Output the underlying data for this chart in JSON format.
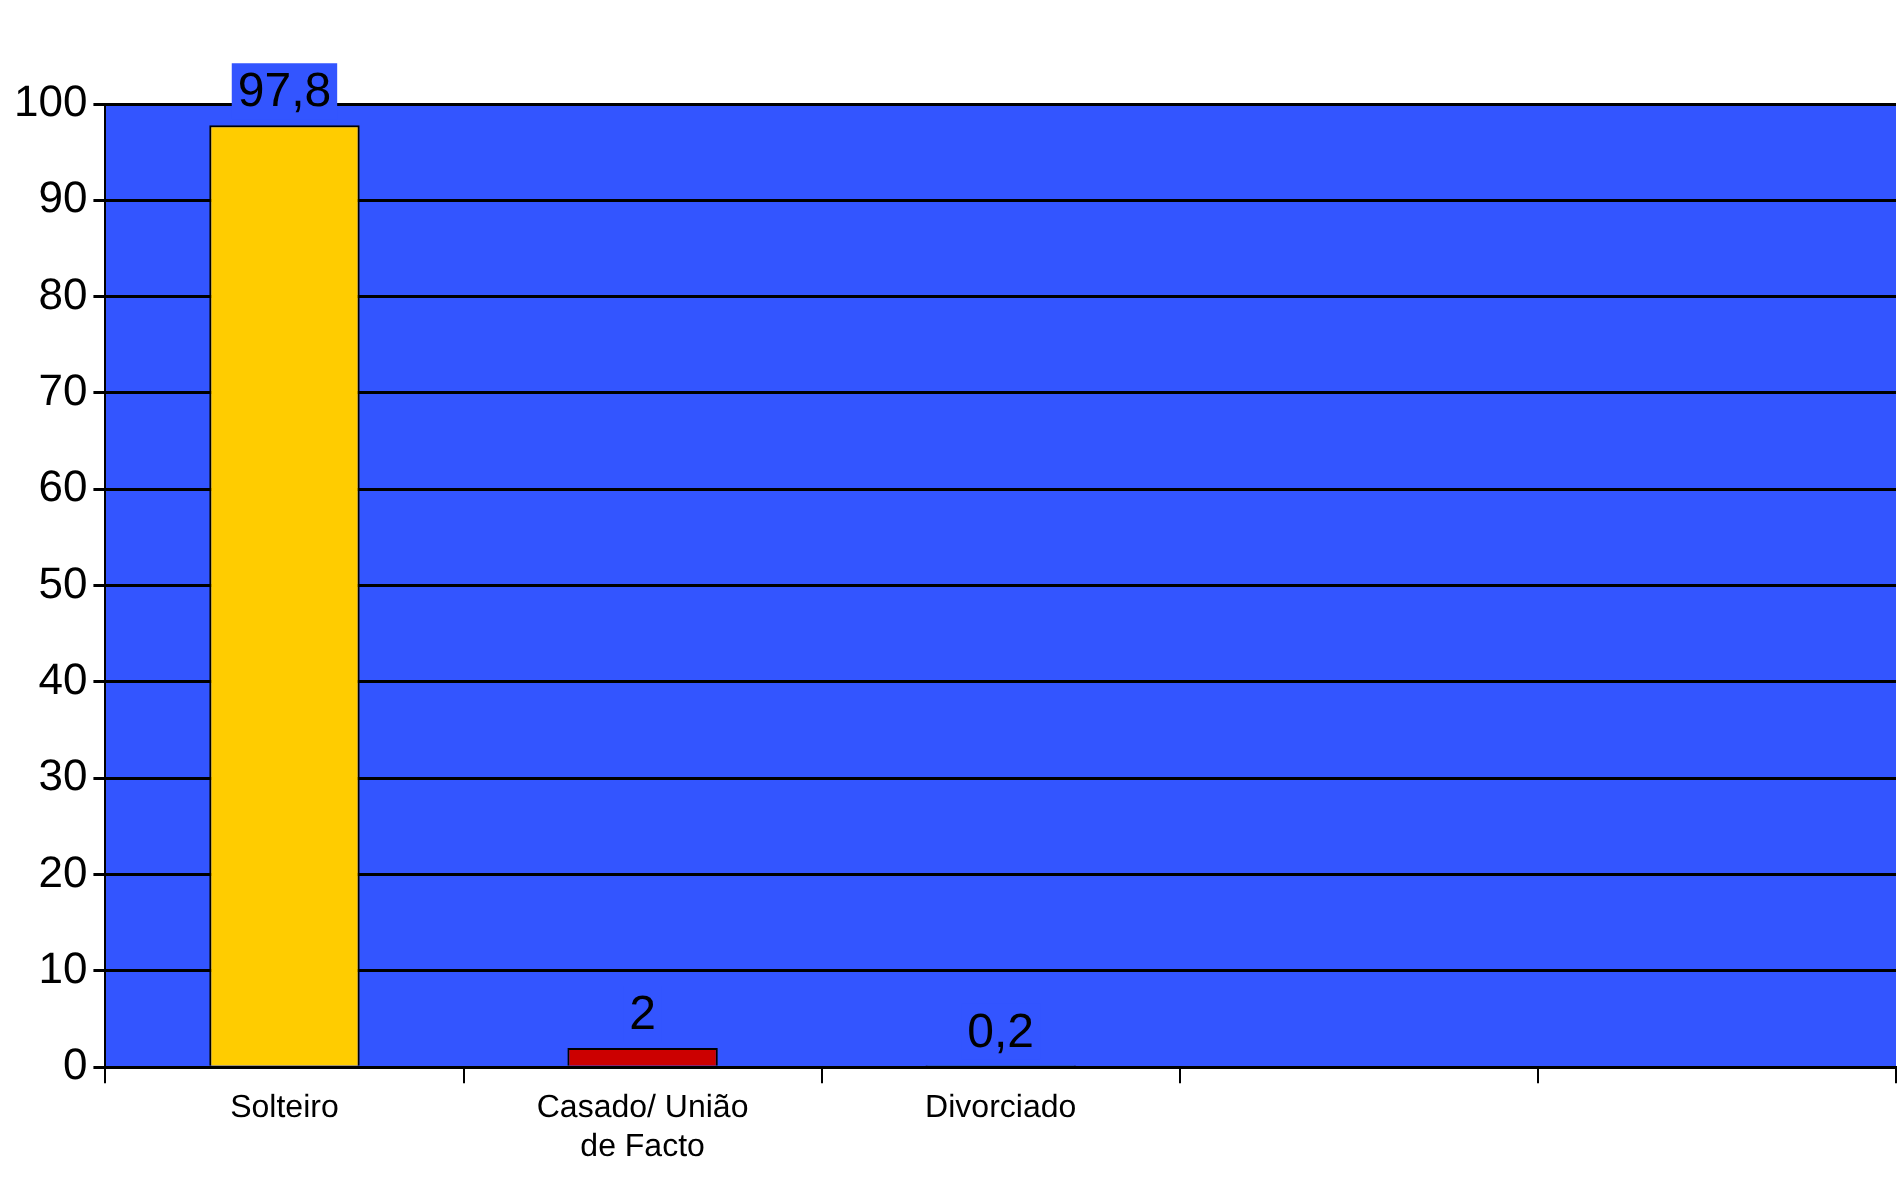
{
  "chart_data": {
    "type": "bar",
    "categories": [
      "Solteiro",
      "Casado/ União de Facto",
      "Divorciado",
      null,
      null
    ],
    "values": [
      97.8,
      2,
      0.2,
      null,
      null
    ],
    "colors": [
      "#ffcc00",
      "#cc0000",
      "#33aa99",
      "#000000",
      "#000000"
    ],
    "value_labels": [
      "97,8",
      "2",
      "0,2",
      null,
      null
    ],
    "ylim": [
      0,
      100
    ],
    "yticks": [
      0,
      10,
      20,
      30,
      40,
      50,
      60,
      70,
      80,
      90,
      100
    ],
    "grid": "y"
  }
}
